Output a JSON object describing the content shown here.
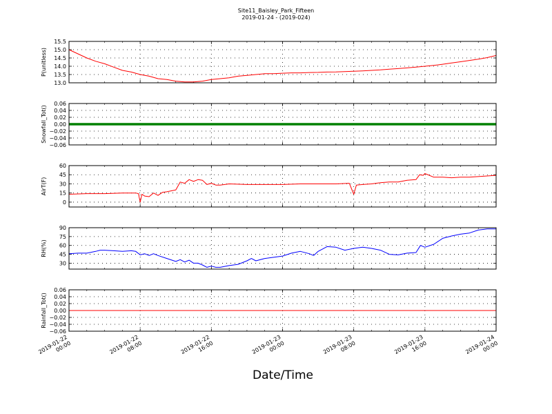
{
  "title": "Site11_Baisley_Park_Fifteen",
  "subtitle": "2019-01-24 - (2019-024)",
  "xlabel": "Date/Time",
  "chart_data": [
    {
      "type": "line",
      "ylabel": "P(unitless)",
      "ylim": [
        13.0,
        15.5
      ],
      "yticks": [
        "15.5",
        "15.0",
        "14.5",
        "14.0",
        "13.5",
        "13.0"
      ],
      "ytick_values": [
        15.5,
        15.0,
        14.5,
        14.0,
        13.5,
        13.0
      ],
      "color": "#ff0000",
      "grid": true,
      "x": [
        0,
        1,
        2,
        3,
        4,
        5,
        6,
        7,
        8,
        9,
        10,
        11,
        12,
        13,
        14,
        15,
        16,
        17,
        18,
        19,
        20,
        21,
        22,
        23,
        24,
        25,
        26,
        27,
        28,
        29,
        30,
        31,
        32,
        33,
        34,
        35,
        36,
        37,
        38,
        39,
        40,
        41,
        42,
        43,
        44,
        45,
        46,
        47,
        48
      ],
      "values": [
        15.0,
        14.75,
        14.5,
        14.3,
        14.15,
        13.95,
        13.75,
        13.65,
        13.5,
        13.4,
        13.25,
        13.2,
        13.1,
        13.05,
        13.05,
        13.1,
        13.2,
        13.25,
        13.3,
        13.4,
        13.45,
        13.5,
        13.55,
        13.55,
        13.58,
        13.6,
        13.6,
        13.62,
        13.63,
        13.65,
        13.66,
        13.68,
        13.7,
        13.72,
        13.75,
        13.78,
        13.82,
        13.86,
        13.9,
        13.95,
        14.0,
        14.05,
        14.12,
        14.2,
        14.27,
        14.35,
        14.43,
        14.52,
        14.65
      ]
    },
    {
      "type": "line",
      "ylabel": "Snowfall_Tot()",
      "ylim": [
        -0.06,
        0.06
      ],
      "yticks": [
        "0.06",
        "0.04",
        "0.02",
        "0.00",
        "−0.02",
        "−0.04",
        "−0.06"
      ],
      "ytick_values": [
        0.06,
        0.04,
        0.02,
        0.0,
        -0.02,
        -0.04,
        -0.06
      ],
      "color": "#008000",
      "grid": true,
      "x": [
        0,
        48
      ],
      "values": [
        0.0,
        0.0
      ]
    },
    {
      "type": "line",
      "ylabel": "AirT(F)",
      "ylim": [
        -8,
        60
      ],
      "yticks": [
        "60",
        "45",
        "30",
        "15",
        "0"
      ],
      "ytick_values": [
        60,
        45,
        30,
        15,
        0
      ],
      "color": "#ff0000",
      "grid": true,
      "x": [
        0,
        2,
        4,
        6,
        7,
        7.5,
        7.8,
        8.0,
        8.2,
        8.5,
        9,
        9.5,
        10,
        10.5,
        11,
        12,
        12.5,
        13,
        13.5,
        14,
        14.5,
        15,
        15.5,
        16,
        16.5,
        17,
        18,
        20,
        22,
        24,
        26,
        28,
        30,
        31.5,
        32.0,
        32.3,
        33,
        34,
        35,
        36,
        37,
        38,
        39,
        39.4,
        39.8,
        40,
        41,
        42,
        43,
        44,
        45,
        46,
        47,
        48
      ],
      "values": [
        13,
        14,
        14,
        15,
        15,
        15,
        14,
        0,
        13,
        10,
        9,
        15,
        11,
        16,
        17,
        20,
        33,
        31,
        37,
        34,
        37,
        36,
        29,
        31,
        28,
        28,
        30,
        29,
        29,
        29,
        30,
        30,
        30,
        31,
        13,
        28,
        29,
        30,
        32,
        33,
        33,
        36,
        37,
        45,
        44,
        47,
        41,
        41,
        40,
        41,
        41,
        42,
        43,
        44
      ]
    },
    {
      "type": "line",
      "ylabel": "RH(%)",
      "ylim": [
        20,
        90
      ],
      "yticks": [
        "90",
        "75",
        "60",
        "45",
        "30"
      ],
      "ytick_values": [
        90,
        75,
        60,
        45,
        30
      ],
      "color": "#0000ff",
      "grid": true,
      "x": [
        0,
        1,
        2,
        3,
        3.5,
        4,
        5,
        6,
        7,
        7.5,
        8,
        8.5,
        9,
        9.5,
        10,
        11,
        12,
        12.5,
        13,
        13.5,
        14,
        14.5,
        15,
        15.5,
        16,
        16.5,
        17,
        18,
        19,
        20,
        20.5,
        21,
        22,
        23,
        24,
        25,
        26,
        27,
        27.5,
        28,
        29,
        30,
        31,
        32,
        33,
        34,
        35,
        36,
        37,
        38,
        39,
        39.5,
        40,
        41,
        42,
        43,
        44,
        45,
        46,
        47,
        48
      ],
      "values": [
        46,
        47,
        47,
        50,
        52,
        52,
        51,
        50,
        51,
        50,
        44,
        46,
        43,
        46,
        43,
        38,
        33,
        36,
        32,
        35,
        30,
        30,
        27,
        23,
        25,
        23,
        23,
        26,
        28,
        34,
        38,
        34,
        38,
        40,
        42,
        47,
        50,
        46,
        43,
        50,
        58,
        57,
        52,
        55,
        57,
        55,
        52,
        45,
        44,
        47,
        48,
        60,
        57,
        62,
        72,
        76,
        79,
        81,
        86,
        88,
        88
      ]
    },
    {
      "type": "line",
      "ylabel": "Rainfall_Tot()",
      "ylim": [
        -0.06,
        0.06
      ],
      "yticks": [
        "0.06",
        "0.04",
        "0.02",
        "0.00",
        "−0.02",
        "−0.04",
        "−0.06"
      ],
      "ytick_values": [
        0.06,
        0.04,
        0.02,
        0.0,
        -0.02,
        -0.04,
        -0.06
      ],
      "color": "#ff0000",
      "grid": true,
      "x": [
        0,
        48
      ],
      "values": [
        0.0,
        0.0
      ]
    }
  ],
  "xaxis": {
    "range": [
      0,
      48
    ],
    "ticks": [
      {
        "value": 0,
        "line1": "2019-01-22",
        "line2": "00:00"
      },
      {
        "value": 8,
        "line1": "2019-01-22",
        "line2": "08:00"
      },
      {
        "value": 16,
        "line1": "2019-01-22",
        "line2": "16:00"
      },
      {
        "value": 24,
        "line1": "2019-01-23",
        "line2": "00:00"
      },
      {
        "value": 32,
        "line1": "2019-01-23",
        "line2": "08:00"
      },
      {
        "value": 40,
        "line1": "2019-01-23",
        "line2": "16:00"
      },
      {
        "value": 48,
        "line1": "2019-01-24",
        "line2": "00:00"
      }
    ]
  }
}
